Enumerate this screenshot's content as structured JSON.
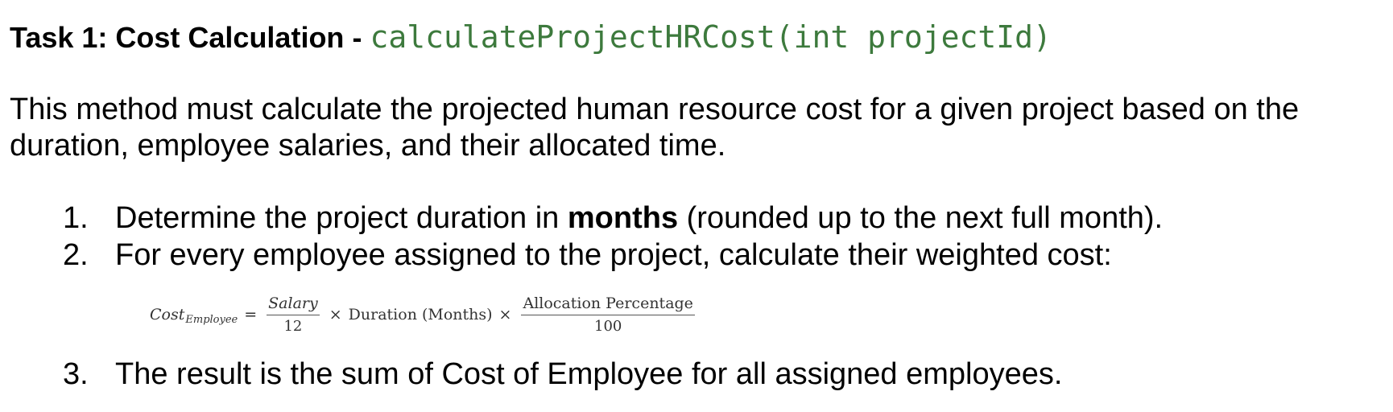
{
  "title": {
    "prefix": "Task 1: Cost Calculation",
    "separator": " - ",
    "method": "calculateProjectHRCost(int projectId)"
  },
  "intro": "This method must calculate the projected human resource cost for a given project based on the duration, employee salaries, and their allocated time.",
  "steps": [
    {
      "number": "1.",
      "before": "Determine the project duration in ",
      "bold": "months",
      "after": " (rounded up to the next full month)."
    },
    {
      "number": "2.",
      "text": "For every employee assigned to the project, calculate their weighted cost:"
    },
    {
      "number": "3.",
      "text": "The result is the sum of Cost of Employee for all assigned employees."
    }
  ],
  "formula": {
    "lhs": "Cost",
    "lhs_sub": "Employee",
    "equals": "=",
    "salary": "Salary",
    "months_divisor": "12",
    "times": "×",
    "duration": "Duration (Months)",
    "allocation": "Allocation Percentage",
    "percent_divisor": "100"
  }
}
